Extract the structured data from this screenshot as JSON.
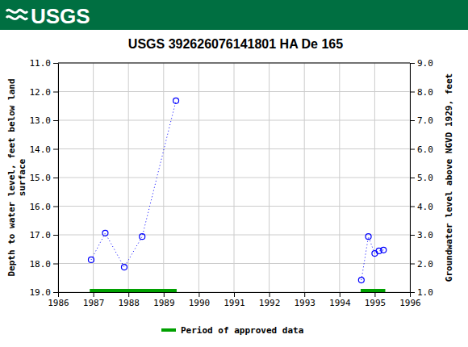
{
  "header": {
    "logo": "USGS"
  },
  "chart_data": {
    "type": "scatter",
    "title": "USGS 392626076141801 HA De 165",
    "ylabel": [
      "Depth to water level, feet below land",
      "surface"
    ],
    "y2label": "Groundwater level above NGVD 1929, feet",
    "marker": "circle",
    "line_style": "dotted",
    "grid": true,
    "xlim": [
      1986,
      1996
    ],
    "xticks": [
      1986,
      1987,
      1988,
      1989,
      1990,
      1991,
      1992,
      1993,
      1994,
      1995,
      1996
    ],
    "ylim": [
      19,
      11
    ],
    "yticks": [
      {
        "value": 11,
        "label": "11.0"
      },
      {
        "value": 12,
        "label": "12.0"
      },
      {
        "value": 13,
        "label": "13.0"
      },
      {
        "value": 14,
        "label": "14.0"
      },
      {
        "value": 15,
        "label": "15.0"
      },
      {
        "value": 16,
        "label": "16.0"
      },
      {
        "value": 17,
        "label": "17.0"
      },
      {
        "value": 18,
        "label": "18.0"
      },
      {
        "value": 19,
        "label": "19.0"
      }
    ],
    "y2lim": [
      1,
      9
    ],
    "y2ticks": [
      {
        "value": 9,
        "label": "9.0"
      },
      {
        "value": 8,
        "label": "8.0"
      },
      {
        "value": 7,
        "label": "7.0"
      },
      {
        "value": 6,
        "label": "6.0"
      },
      {
        "value": 5,
        "label": "5.0"
      },
      {
        "value": 4,
        "label": "4.0"
      },
      {
        "value": 3,
        "label": "3.0"
      },
      {
        "value": 2,
        "label": "2.0"
      },
      {
        "value": 1,
        "label": "1.0"
      }
    ],
    "series": [
      {
        "color": "#0000ff",
        "x": [
          1986.94,
          1987.34,
          1987.88,
          1988.39,
          1989.35
        ],
        "values": [
          17.87,
          16.94,
          18.13,
          17.06,
          12.32
        ]
      },
      {
        "color": "#0000ff",
        "x": [
          1994.62,
          1994.82,
          1995.0,
          1995.12,
          1995.25
        ],
        "values": [
          18.58,
          17.06,
          17.65,
          17.56,
          17.53
        ]
      }
    ],
    "approved_periods": {
      "name": "Period of approved data",
      "color": "#00a000",
      "ranges": [
        [
          1986.9,
          1989.37
        ],
        [
          1994.6,
          1995.3
        ]
      ]
    }
  }
}
